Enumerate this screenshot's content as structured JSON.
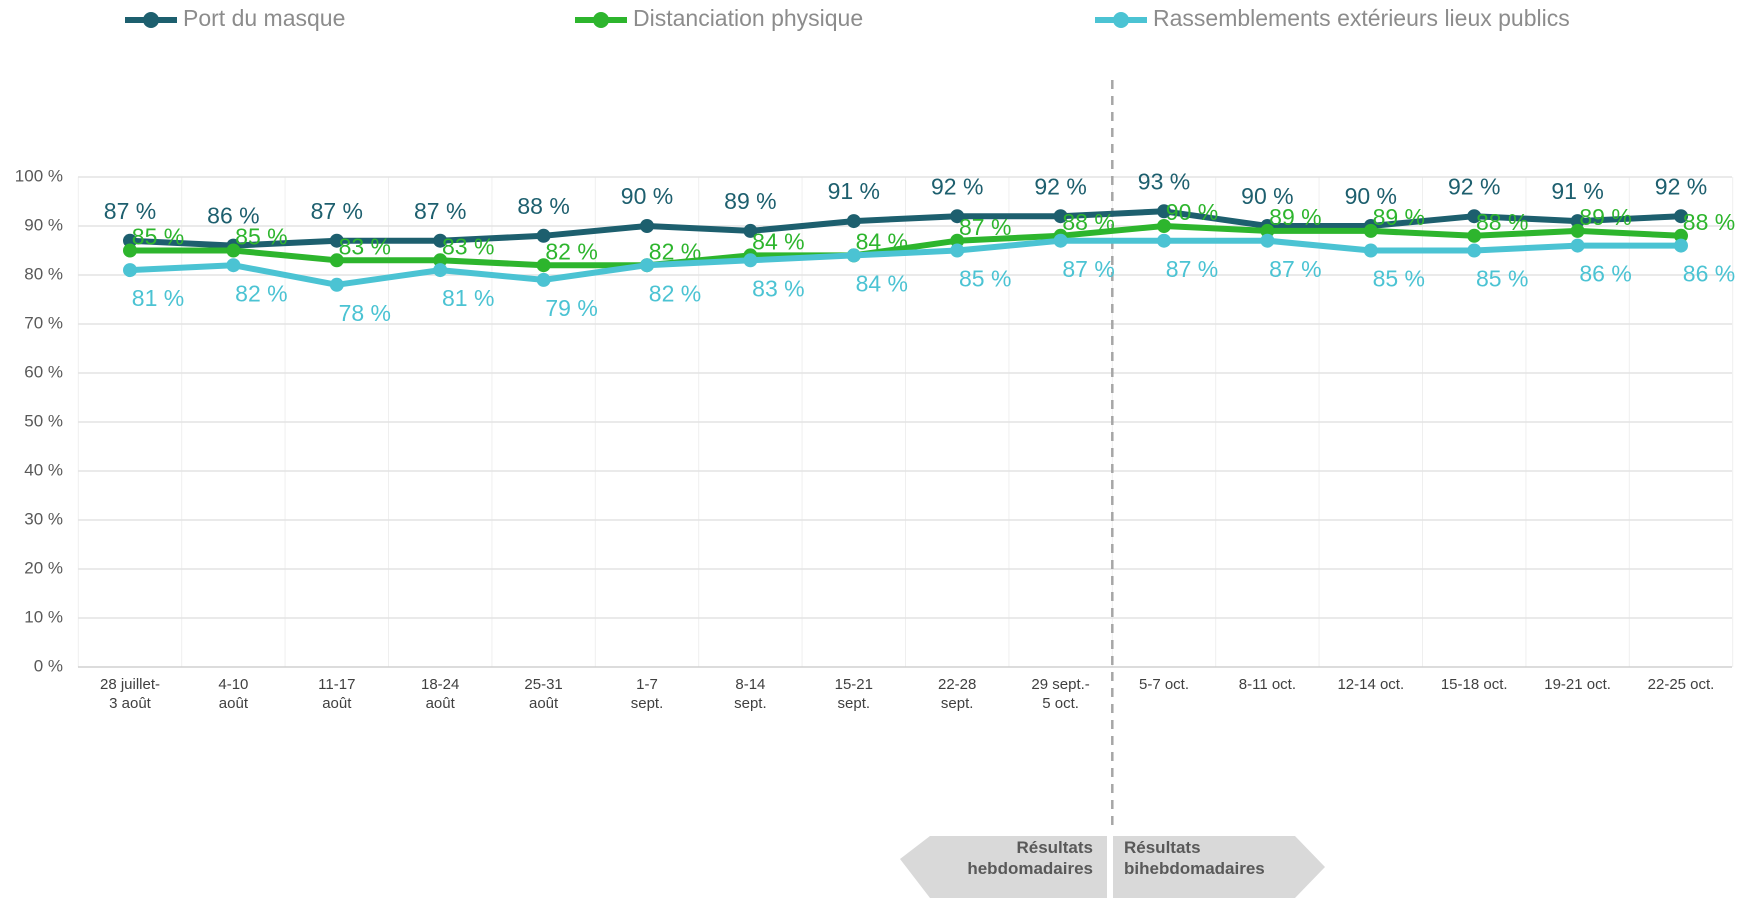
{
  "chart_data": {
    "type": "line",
    "categories": [
      "28 juillet-\n3 août",
      "4-10\naoût",
      "11-17\naoût",
      "18-24\naoût",
      "25-31\naoût",
      "1-7\nsept.",
      "8-14\nsept.",
      "15-21\nsept.",
      "22-28\nsept.",
      "29 sept.-\n5 oct.",
      "5-7 oct.",
      "8-11 oct.",
      "12-14 oct.",
      "15-18 oct.",
      "19-21 oct.",
      "22-25 oct."
    ],
    "series": [
      {
        "name": "Port du masque",
        "color": "#1d5f6e",
        "values": [
          87,
          86,
          87,
          87,
          88,
          90,
          89,
          91,
          92,
          92,
          93,
          90,
          90,
          92,
          91,
          92
        ],
        "value_labels": [
          "87 %",
          "86 %",
          "87 %",
          "87 %",
          "88 %",
          "90 %",
          "89 %",
          "91 %",
          "92 %",
          "92 %",
          "93 %",
          "90 %",
          "90 %",
          "92 %",
          "91 %",
          "92 %"
        ]
      },
      {
        "name": "Distanciation physique",
        "color": "#2db52d",
        "values": [
          85,
          85,
          83,
          83,
          82,
          82,
          84,
          84,
          87,
          88,
          90,
          89,
          89,
          88,
          89,
          88
        ],
        "value_labels": [
          "85 %",
          "85 %",
          "83 %",
          "83 %",
          "82 %",
          "82 %",
          "84 %",
          "84 %",
          "87 %",
          "88 %",
          "90 %",
          "89 %",
          "89 %",
          "88 %",
          "89 %",
          "88 %"
        ]
      },
      {
        "name": "Rassemblements extérieurs lieux publics",
        "color": "#4bc3d3",
        "values": [
          81,
          82,
          78,
          81,
          79,
          82,
          83,
          84,
          85,
          87,
          87,
          87,
          85,
          85,
          86,
          86
        ],
        "value_labels": [
          "81 %",
          "82 %",
          "78 %",
          "81 %",
          "79 %",
          "82 %",
          "83 %",
          "84 %",
          "85 %",
          "87 %",
          "87 %",
          "87 %",
          "85 %",
          "85 %",
          "86 %",
          "86 %"
        ]
      }
    ],
    "ylim": [
      0,
      100
    ],
    "yticks": [
      {
        "value": 0,
        "label": "0 %"
      },
      {
        "value": 10,
        "label": "10 %"
      },
      {
        "value": 20,
        "label": "20 %"
      },
      {
        "value": 30,
        "label": "30 %"
      },
      {
        "value": 40,
        "label": "40 %"
      },
      {
        "value": 50,
        "label": "50 %"
      },
      {
        "value": 60,
        "label": "60 %"
      },
      {
        "value": 70,
        "label": "70 %"
      },
      {
        "value": 80,
        "label": "80 %"
      },
      {
        "value": 90,
        "label": "90 %"
      },
      {
        "value": 100,
        "label": "100 %"
      }
    ],
    "grid": true,
    "legend": "top",
    "annotations": [
      "Résultats\nhebdomadaires",
      "Résultats\nbihebdomadaires"
    ]
  }
}
